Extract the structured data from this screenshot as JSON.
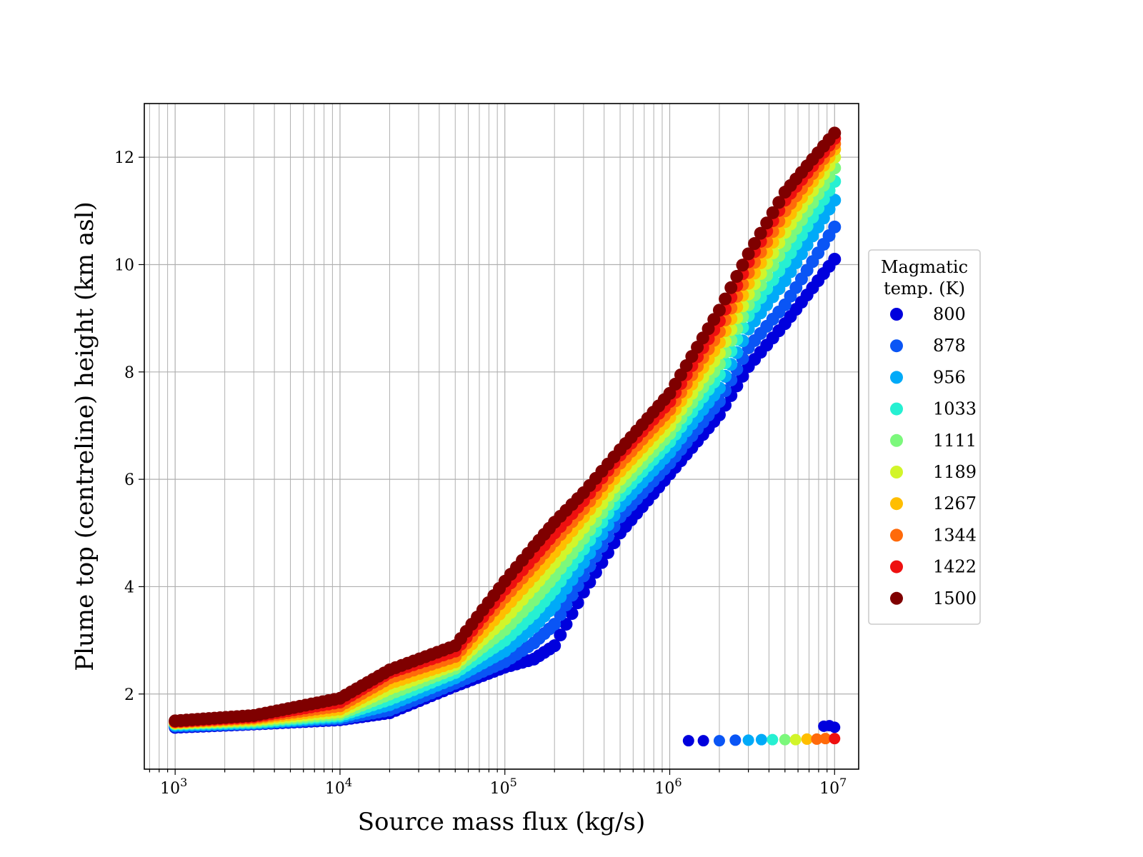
{
  "chart_data": {
    "type": "scatter",
    "title": "",
    "xlabel": "Source mass flux (kg/s)",
    "ylabel": "Plume top (centreline) height (km asl)",
    "xscale": "log",
    "xlim": [
      650,
      14000000
    ],
    "ylim": [
      0.6,
      13.0
    ],
    "grid": true,
    "x_ticks": [
      {
        "value": 1000,
        "base": "10",
        "exp": "3"
      },
      {
        "value": 10000,
        "base": "10",
        "exp": "4"
      },
      {
        "value": 100000,
        "base": "10",
        "exp": "5"
      },
      {
        "value": 1000000,
        "base": "10",
        "exp": "6"
      },
      {
        "value": 10000000,
        "base": "10",
        "exp": "7"
      }
    ],
    "y_ticks": [
      2,
      4,
      6,
      8,
      10,
      12
    ],
    "legend": {
      "title_line1": "Magmatic",
      "title_line2": "temp. (K)",
      "placement": "right, outside"
    },
    "series": [
      {
        "name": "800",
        "color": "#0000dd",
        "x": [
          1000,
          3000,
          10000,
          20000,
          50000,
          100000,
          150000,
          200000,
          300000,
          500000,
          1000000,
          2000000,
          3000000,
          5000000,
          10000000
        ],
        "y": [
          1.38,
          1.44,
          1.52,
          1.65,
          2.15,
          2.5,
          2.65,
          2.9,
          3.9,
          5.0,
          6.1,
          7.2,
          8.1,
          8.9,
          10.1
        ]
      },
      {
        "name": "878",
        "color": "#0a55f5",
        "x": [
          1000,
          3000,
          10000,
          20000,
          50000,
          100000,
          150000,
          200000,
          300000,
          500000,
          1000000,
          2000000,
          3000000,
          5000000,
          10000000
        ],
        "y": [
          1.4,
          1.45,
          1.54,
          1.7,
          2.2,
          2.6,
          2.95,
          3.3,
          4.2,
          5.3,
          6.3,
          7.45,
          8.45,
          9.25,
          10.7
        ]
      },
      {
        "name": "956",
        "color": "#00aaf8",
        "x": [
          1000,
          3000,
          10000,
          20000,
          50000,
          100000,
          150000,
          200000,
          300000,
          500000,
          1000000,
          2000000,
          3000000,
          5000000,
          10000000
        ],
        "y": [
          1.42,
          1.46,
          1.57,
          1.8,
          2.3,
          2.8,
          3.25,
          3.65,
          4.45,
          5.5,
          6.5,
          7.7,
          8.8,
          9.7,
          11.2
        ]
      },
      {
        "name": "1033",
        "color": "#26f0d2",
        "x": [
          1000,
          3000,
          10000,
          20000,
          50000,
          100000,
          150000,
          200000,
          300000,
          500000,
          1000000,
          2000000,
          3000000,
          5000000,
          10000000
        ],
        "y": [
          1.44,
          1.48,
          1.6,
          1.9,
          2.4,
          3.0,
          3.5,
          3.95,
          4.7,
          5.7,
          6.7,
          7.95,
          9.05,
          10.05,
          11.55
        ]
      },
      {
        "name": "1111",
        "color": "#7cf87c",
        "x": [
          1000,
          3000,
          10000,
          20000,
          50000,
          100000,
          150000,
          200000,
          300000,
          500000,
          1000000,
          2000000,
          3000000,
          5000000,
          10000000
        ],
        "y": [
          1.45,
          1.5,
          1.63,
          2.0,
          2.48,
          3.2,
          3.75,
          4.2,
          4.9,
          5.85,
          6.85,
          8.15,
          9.25,
          10.35,
          11.8
        ]
      },
      {
        "name": "1189",
        "color": "#d2f52a",
        "x": [
          1000,
          3000,
          10000,
          20000,
          50000,
          100000,
          150000,
          200000,
          300000,
          500000,
          1000000,
          2000000,
          3000000,
          5000000,
          10000000
        ],
        "y": [
          1.46,
          1.52,
          1.67,
          2.1,
          2.55,
          3.4,
          4.0,
          4.45,
          5.1,
          6.0,
          7.0,
          8.35,
          9.45,
          10.6,
          12.0
        ]
      },
      {
        "name": "1267",
        "color": "#ffbe00",
        "x": [
          1000,
          3000,
          10000,
          20000,
          50000,
          100000,
          150000,
          200000,
          300000,
          500000,
          1000000,
          2000000,
          3000000,
          5000000,
          10000000
        ],
        "y": [
          1.47,
          1.54,
          1.72,
          2.2,
          2.6,
          3.6,
          4.2,
          4.65,
          5.3,
          6.15,
          7.15,
          8.55,
          9.65,
          10.8,
          12.15
        ]
      },
      {
        "name": "1344",
        "color": "#ff6a0a",
        "x": [
          1000,
          3000,
          10000,
          20000,
          50000,
          100000,
          150000,
          200000,
          300000,
          500000,
          1000000,
          2000000,
          3000000,
          5000000,
          10000000
        ],
        "y": [
          1.48,
          1.56,
          1.78,
          2.3,
          2.7,
          3.8,
          4.4,
          4.85,
          5.45,
          6.3,
          7.3,
          8.75,
          9.85,
          11.0,
          12.25
        ]
      },
      {
        "name": "1422",
        "color": "#ee1010",
        "x": [
          1000,
          3000,
          10000,
          20000,
          50000,
          100000,
          150000,
          200000,
          300000,
          500000,
          1000000,
          2000000,
          3000000,
          5000000,
          10000000
        ],
        "y": [
          1.49,
          1.58,
          1.85,
          2.4,
          2.8,
          3.95,
          4.55,
          5.0,
          5.6,
          6.45,
          7.45,
          8.95,
          10.05,
          11.2,
          12.35
        ]
      },
      {
        "name": "1500",
        "color": "#7f0000",
        "x": [
          1000,
          3000,
          10000,
          20000,
          50000,
          100000,
          150000,
          200000,
          300000,
          500000,
          1000000,
          2000000,
          3000000,
          5000000,
          10000000
        ],
        "y": [
          1.5,
          1.6,
          1.92,
          2.45,
          2.9,
          4.1,
          4.75,
          5.2,
          5.75,
          6.55,
          7.6,
          9.15,
          10.2,
          11.35,
          12.45
        ]
      }
    ],
    "outlier_band": {
      "x": [
        1300000,
        1600000,
        2000000,
        2500000,
        3000000,
        3600000,
        4200000,
        5000000,
        5800000,
        6800000,
        7800000,
        8800000,
        10000000
      ],
      "y": [
        1.13,
        1.13,
        1.13,
        1.14,
        1.14,
        1.15,
        1.15,
        1.15,
        1.15,
        1.16,
        1.16,
        1.17,
        1.17
      ],
      "colors": [
        "#0000dd",
        "#0000dd",
        "#0a55f5",
        "#0a55f5",
        "#00aaf8",
        "#00aaf8",
        "#26f0d2",
        "#7cf87c",
        "#d2f52a",
        "#ffbe00",
        "#ff6a0a",
        "#ff6a0a",
        "#ee1010"
      ]
    },
    "outlier_high": {
      "x": [
        8600000,
        9300000,
        10000000
      ],
      "y": [
        1.4,
        1.41,
        1.38
      ],
      "color": "#0000dd"
    }
  }
}
